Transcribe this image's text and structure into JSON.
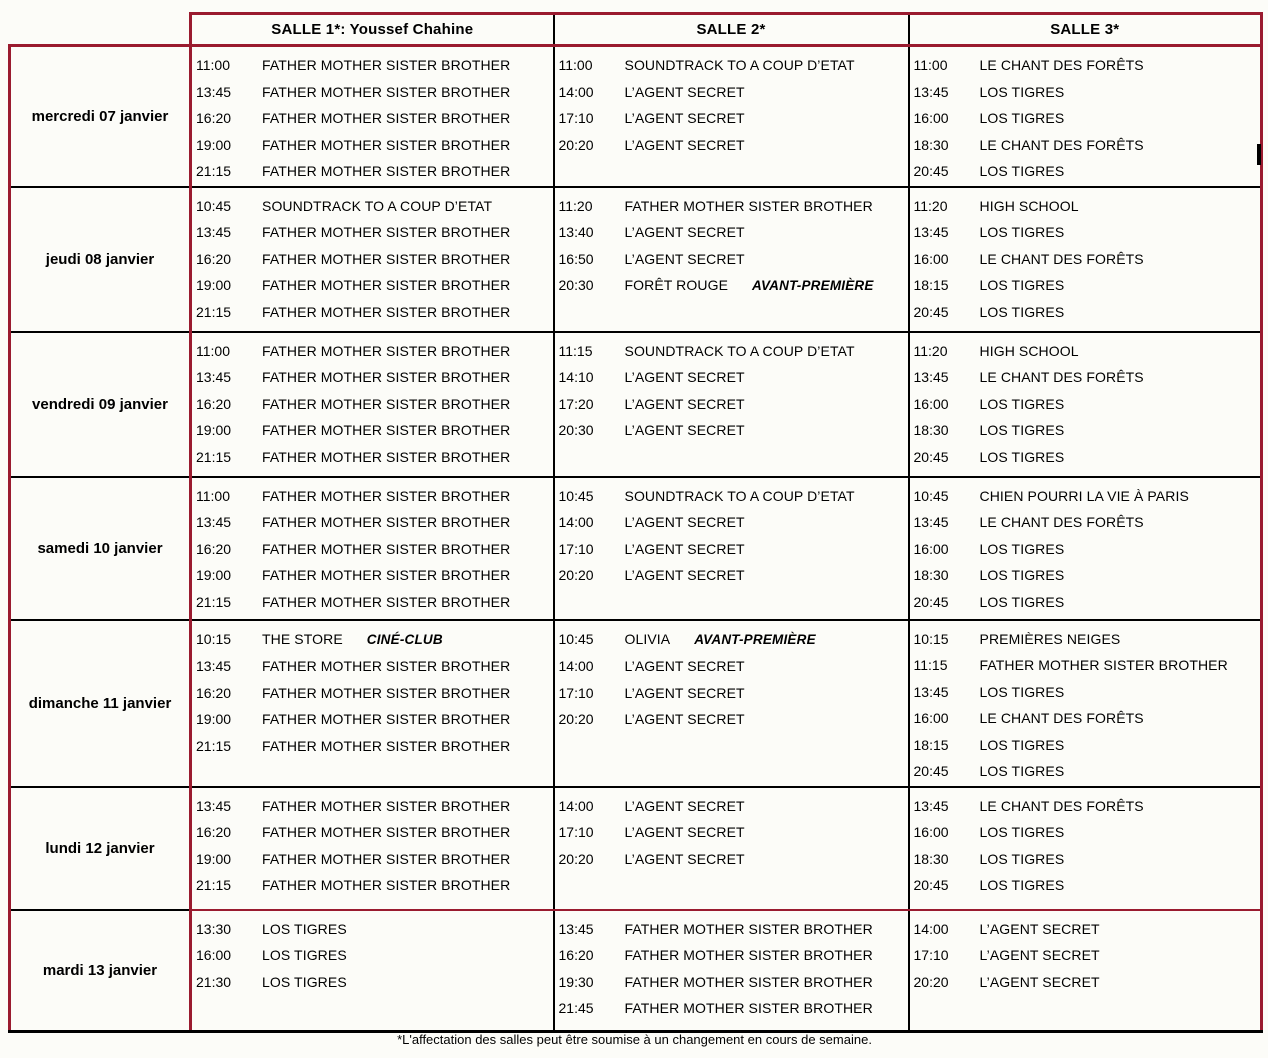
{
  "page": {
    "background_color": "#FCFCF8",
    "border_red_color": "#9A1B2F",
    "border_black_color": "#000000",
    "footnote": "*L'affectation des salles peut être soumise à un changement en cours de semaine."
  },
  "table": {
    "headers": [
      "SALLE 1*: Youssef Chahine",
      "SALLE 2*",
      "SALLE 3*"
    ],
    "days": [
      {
        "label": "mercredi 07 janvier",
        "salle1": [
          {
            "time": "11:00",
            "title": "FATHER MOTHER SISTER BROTHER"
          },
          {
            "time": "13:45",
            "title": "FATHER MOTHER SISTER BROTHER"
          },
          {
            "time": "16:20",
            "title": "FATHER MOTHER SISTER BROTHER"
          },
          {
            "time": "19:00",
            "title": "FATHER MOTHER SISTER BROTHER"
          },
          {
            "time": "21:15",
            "title": "FATHER MOTHER SISTER BROTHER"
          }
        ],
        "salle2": [
          {
            "time": "11:00",
            "title": "SOUNDTRACK TO A COUP D’ETAT"
          },
          {
            "time": "14:00",
            "title": "L’AGENT SECRET"
          },
          {
            "time": "17:10",
            "title": "L’AGENT SECRET"
          },
          {
            "time": "20:20",
            "title": "L’AGENT SECRET"
          }
        ],
        "salle3": [
          {
            "time": "11:00",
            "title": "LE CHANT DES FORÊTS"
          },
          {
            "time": "13:45",
            "title": "LOS TIGRES"
          },
          {
            "time": "16:00",
            "title": "LOS TIGRES"
          },
          {
            "time": "18:30",
            "title": "LE CHANT DES FORÊTS"
          },
          {
            "time": "20:45",
            "title": "LOS TIGRES"
          }
        ]
      },
      {
        "label": "jeudi 08 janvier",
        "salle1": [
          {
            "time": "10:45",
            "title": "SOUNDTRACK TO A COUP D’ETAT"
          },
          {
            "time": "13:45",
            "title": "FATHER MOTHER SISTER BROTHER"
          },
          {
            "time": "16:20",
            "title": "FATHER MOTHER SISTER BROTHER"
          },
          {
            "time": "19:00",
            "title": "FATHER MOTHER SISTER BROTHER"
          },
          {
            "time": "21:15",
            "title": "FATHER MOTHER SISTER BROTHER"
          }
        ],
        "salle2": [
          {
            "time": "11:20",
            "title": "FATHER MOTHER SISTER BROTHER"
          },
          {
            "time": "13:40",
            "title": "L’AGENT SECRET"
          },
          {
            "time": "16:50",
            "title": "L’AGENT SECRET"
          },
          {
            "time": "20:30",
            "title": "FORÊT ROUGE",
            "badge": "AVANT-PREMIÈRE"
          }
        ],
        "salle3": [
          {
            "time": "11:20",
            "title": "HIGH SCHOOL"
          },
          {
            "time": "13:45",
            "title": "LOS TIGRES"
          },
          {
            "time": "16:00",
            "title": "LE CHANT DES FORÊTS"
          },
          {
            "time": "18:15",
            "title": "LOS TIGRES"
          },
          {
            "time": "20:45",
            "title": "LOS TIGRES"
          }
        ]
      },
      {
        "label": "vendredi 09 janvier",
        "salle1": [
          {
            "time": "11:00",
            "title": "FATHER MOTHER SISTER BROTHER"
          },
          {
            "time": "13:45",
            "title": "FATHER MOTHER SISTER BROTHER"
          },
          {
            "time": "16:20",
            "title": "FATHER MOTHER SISTER BROTHER"
          },
          {
            "time": "19:00",
            "title": "FATHER MOTHER SISTER BROTHER"
          },
          {
            "time": "21:15",
            "title": "FATHER MOTHER SISTER BROTHER"
          }
        ],
        "salle2": [
          {
            "time": "11:15",
            "title": "SOUNDTRACK TO A COUP D’ETAT"
          },
          {
            "time": "14:10",
            "title": "L’AGENT SECRET"
          },
          {
            "time": "17:20",
            "title": "L’AGENT SECRET"
          },
          {
            "time": "20:30",
            "title": "L’AGENT SECRET"
          }
        ],
        "salle3": [
          {
            "time": "11:20",
            "title": "HIGH SCHOOL"
          },
          {
            "time": "13:45",
            "title": "LE CHANT DES FORÊTS"
          },
          {
            "time": "16:00",
            "title": "LOS TIGRES"
          },
          {
            "time": "18:30",
            "title": "LOS TIGRES"
          },
          {
            "time": "20:45",
            "title": "LOS TIGRES"
          }
        ]
      },
      {
        "label": "samedi 10 janvier",
        "salle1": [
          {
            "time": "11:00",
            "title": "FATHER MOTHER SISTER BROTHER"
          },
          {
            "time": "13:45",
            "title": "FATHER MOTHER SISTER BROTHER"
          },
          {
            "time": "16:20",
            "title": "FATHER MOTHER SISTER BROTHER"
          },
          {
            "time": "19:00",
            "title": "FATHER MOTHER SISTER BROTHER"
          },
          {
            "time": "21:15",
            "title": "FATHER MOTHER SISTER BROTHER"
          }
        ],
        "salle2": [
          {
            "time": "10:45",
            "title": "SOUNDTRACK TO A COUP D’ETAT"
          },
          {
            "time": "14:00",
            "title": "L’AGENT SECRET"
          },
          {
            "time": "17:10",
            "title": "L’AGENT SECRET"
          },
          {
            "time": "20:20",
            "title": "L’AGENT SECRET"
          }
        ],
        "salle3": [
          {
            "time": "10:45",
            "title": "CHIEN POURRI LA VIE À PARIS"
          },
          {
            "time": "13:45",
            "title": "LE CHANT DES FORÊTS"
          },
          {
            "time": "16:00",
            "title": "LOS TIGRES"
          },
          {
            "time": "18:30",
            "title": "LOS TIGRES"
          },
          {
            "time": "20:45",
            "title": "LOS TIGRES"
          }
        ]
      },
      {
        "label": "dimanche 11 janvier",
        "salle1": [
          {
            "time": "10:15",
            "title": "THE STORE",
            "badge": "CINÉ-CLUB"
          },
          {
            "time": "13:45",
            "title": "FATHER MOTHER SISTER BROTHER"
          },
          {
            "time": "16:20",
            "title": "FATHER MOTHER SISTER BROTHER"
          },
          {
            "time": "19:00",
            "title": "FATHER MOTHER SISTER BROTHER"
          },
          {
            "time": "21:15",
            "title": "FATHER MOTHER SISTER BROTHER"
          }
        ],
        "salle2": [
          {
            "time": "10:45",
            "title": "OLIVIA",
            "badge": "AVANT-PREMIÈRE"
          },
          {
            "time": "14:00",
            "title": "L’AGENT SECRET"
          },
          {
            "time": "17:10",
            "title": "L’AGENT SECRET"
          },
          {
            "time": "20:20",
            "title": "L’AGENT SECRET"
          }
        ],
        "salle3": [
          {
            "time": "10:15",
            "title": "PREMIÈRES NEIGES"
          },
          {
            "time": "11:15",
            "title": "FATHER MOTHER SISTER BROTHER"
          },
          {
            "time": "13:45",
            "title": "LOS TIGRES"
          },
          {
            "time": "16:00",
            "title": "LE CHANT DES FORÊTS"
          },
          {
            "time": "18:15",
            "title": "LOS TIGRES"
          },
          {
            "time": "20:45",
            "title": "LOS TIGRES"
          }
        ]
      },
      {
        "label": "lundi 12 janvier",
        "salle1": [
          {
            "time": "13:45",
            "title": "FATHER MOTHER SISTER BROTHER"
          },
          {
            "time": "16:20",
            "title": "FATHER MOTHER SISTER BROTHER"
          },
          {
            "time": "19:00",
            "title": "FATHER MOTHER SISTER BROTHER"
          },
          {
            "time": "21:15",
            "title": "FATHER MOTHER SISTER BROTHER"
          }
        ],
        "salle2": [
          {
            "time": "14:00",
            "title": "L’AGENT SECRET"
          },
          {
            "time": "17:10",
            "title": "L’AGENT SECRET"
          },
          {
            "time": "20:20",
            "title": "L’AGENT SECRET"
          }
        ],
        "salle3": [
          {
            "time": "13:45",
            "title": "LE CHANT DES FORÊTS"
          },
          {
            "time": "16:00",
            "title": "LOS TIGRES"
          },
          {
            "time": "18:30",
            "title": "LOS TIGRES"
          },
          {
            "time": "20:45",
            "title": "LOS TIGRES"
          }
        ]
      },
      {
        "label": "mardi 13 janvier",
        "salle1": [
          {
            "time": "13:30",
            "title": "LOS TIGRES"
          },
          {
            "time": "16:00",
            "title": "LOS TIGRES"
          },
          {
            "time": "21:30",
            "title": "LOS TIGRES"
          }
        ],
        "salle2": [
          {
            "time": "13:45",
            "title": "FATHER MOTHER SISTER BROTHER"
          },
          {
            "time": "16:20",
            "title": "FATHER MOTHER SISTER BROTHER"
          },
          {
            "time": "19:30",
            "title": "FATHER MOTHER SISTER BROTHER"
          },
          {
            "time": "21:45",
            "title": "FATHER MOTHER SISTER BROTHER"
          }
        ],
        "salle3": [
          {
            "time": "14:00",
            "title": "L’AGENT SECRET"
          },
          {
            "time": "17:10",
            "title": "L’AGENT SECRET"
          },
          {
            "time": "20:20",
            "title": "L’AGENT SECRET"
          }
        ]
      }
    ]
  }
}
